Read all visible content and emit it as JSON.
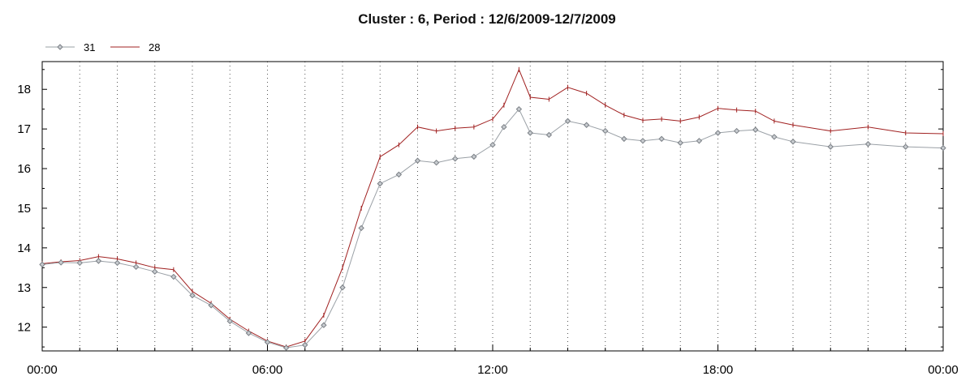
{
  "chart_data": {
    "type": "line",
    "title": "Cluster : 6, Period : 12/6/2009-12/7/2009",
    "xlabel": "",
    "ylabel": "",
    "x_ticks_hours": [
      0,
      6,
      12,
      18,
      24
    ],
    "x_tick_labels": [
      "00:00",
      "06:00",
      "12:00",
      "18:00",
      "00:00"
    ],
    "xlim": [
      0,
      24
    ],
    "ylim": [
      11.4,
      18.7
    ],
    "y_ticks": [
      12,
      13,
      14,
      15,
      16,
      17,
      18
    ],
    "y_tick_labels": [
      "12",
      "13",
      "14",
      "15",
      "16",
      "17",
      "18"
    ],
    "grid": "dotted vertical lines every hour",
    "legend": "top-left",
    "series": [
      {
        "name": "31",
        "color": "#9aa0a6",
        "marker": "diamond",
        "points": [
          [
            0,
            13.58
          ],
          [
            0.5,
            13.63
          ],
          [
            1.0,
            13.62
          ],
          [
            1.5,
            13.67
          ],
          [
            2.0,
            13.62
          ],
          [
            2.5,
            13.52
          ],
          [
            3.0,
            13.4
          ],
          [
            3.5,
            13.27
          ],
          [
            4.0,
            12.8
          ],
          [
            4.5,
            12.55
          ],
          [
            5.0,
            12.15
          ],
          [
            5.5,
            11.85
          ],
          [
            6.0,
            11.62
          ],
          [
            6.5,
            11.48
          ],
          [
            7.0,
            11.55
          ],
          [
            7.5,
            12.05
          ],
          [
            8.0,
            13.0
          ],
          [
            8.5,
            14.5
          ],
          [
            9.0,
            15.62
          ],
          [
            9.5,
            15.85
          ],
          [
            10.0,
            16.2
          ],
          [
            10.5,
            16.15
          ],
          [
            11.0,
            16.25
          ],
          [
            11.5,
            16.3
          ],
          [
            12.0,
            16.6
          ],
          [
            12.3,
            17.05
          ],
          [
            12.7,
            17.5
          ],
          [
            13.0,
            16.9
          ],
          [
            13.5,
            16.85
          ],
          [
            14.0,
            17.2
          ],
          [
            14.5,
            17.1
          ],
          [
            15.0,
            16.95
          ],
          [
            15.5,
            16.75
          ],
          [
            16.0,
            16.7
          ],
          [
            16.5,
            16.75
          ],
          [
            17.0,
            16.65
          ],
          [
            17.5,
            16.7
          ],
          [
            18.0,
            16.9
          ],
          [
            18.5,
            16.95
          ],
          [
            19.0,
            16.98
          ],
          [
            19.5,
            16.8
          ],
          [
            20.0,
            16.68
          ],
          [
            21.0,
            16.55
          ],
          [
            22.0,
            16.62
          ],
          [
            23.0,
            16.55
          ],
          [
            24.0,
            16.52
          ]
        ]
      },
      {
        "name": "28",
        "color": "#a02020",
        "marker": "tick",
        "points": [
          [
            0,
            13.6
          ],
          [
            0.5,
            13.65
          ],
          [
            1.0,
            13.68
          ],
          [
            1.5,
            13.78
          ],
          [
            2.0,
            13.72
          ],
          [
            2.5,
            13.62
          ],
          [
            3.0,
            13.5
          ],
          [
            3.5,
            13.45
          ],
          [
            4.0,
            12.9
          ],
          [
            4.5,
            12.6
          ],
          [
            5.0,
            12.2
          ],
          [
            5.5,
            11.9
          ],
          [
            6.0,
            11.65
          ],
          [
            6.5,
            11.5
          ],
          [
            7.0,
            11.65
          ],
          [
            7.5,
            12.3
          ],
          [
            8.0,
            13.5
          ],
          [
            8.5,
            15.0
          ],
          [
            9.0,
            16.3
          ],
          [
            9.5,
            16.6
          ],
          [
            10.0,
            17.05
          ],
          [
            10.5,
            16.95
          ],
          [
            11.0,
            17.02
          ],
          [
            11.5,
            17.05
          ],
          [
            12.0,
            17.25
          ],
          [
            12.3,
            17.6
          ],
          [
            12.7,
            18.5
          ],
          [
            13.0,
            17.8
          ],
          [
            13.5,
            17.75
          ],
          [
            14.0,
            18.05
          ],
          [
            14.5,
            17.9
          ],
          [
            15.0,
            17.6
          ],
          [
            15.5,
            17.35
          ],
          [
            16.0,
            17.22
          ],
          [
            16.5,
            17.25
          ],
          [
            17.0,
            17.2
          ],
          [
            17.5,
            17.3
          ],
          [
            18.0,
            17.52
          ],
          [
            18.5,
            17.48
          ],
          [
            19.0,
            17.45
          ],
          [
            19.5,
            17.2
          ],
          [
            20.0,
            17.1
          ],
          [
            21.0,
            16.95
          ],
          [
            22.0,
            17.05
          ],
          [
            23.0,
            16.9
          ],
          [
            24.0,
            16.88
          ]
        ]
      }
    ]
  }
}
